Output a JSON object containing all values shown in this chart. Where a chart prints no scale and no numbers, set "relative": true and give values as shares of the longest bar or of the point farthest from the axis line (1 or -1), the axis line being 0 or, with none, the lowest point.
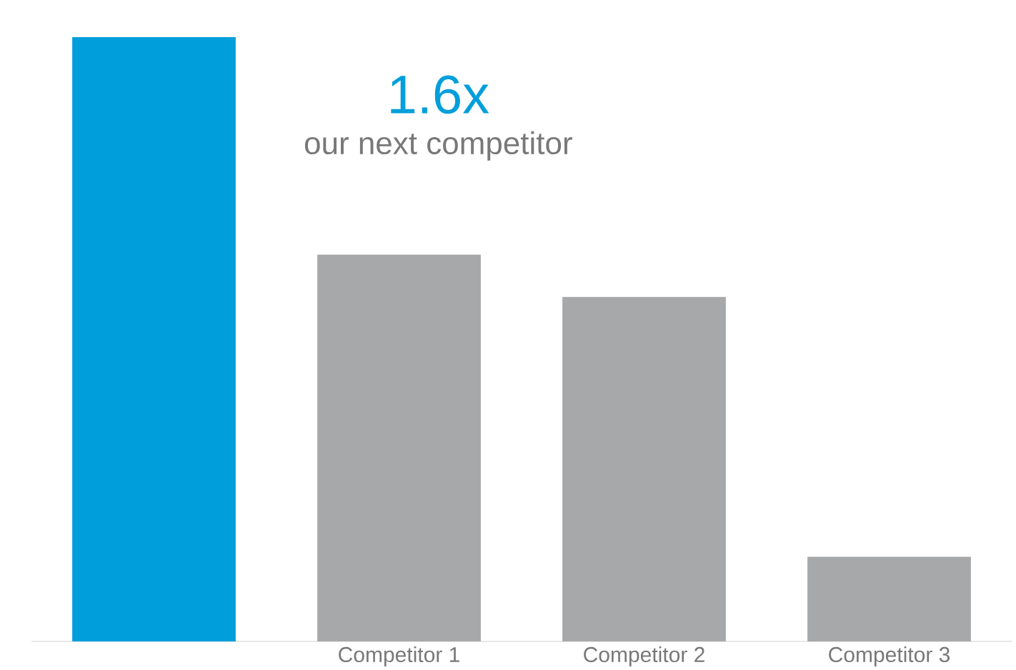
{
  "chart_data": {
    "type": "bar",
    "relative": true,
    "categories": [
      null,
      "Competitor 1",
      "Competitor 2",
      "Competitor 3"
    ],
    "values": [
      1,
      0.64,
      0.57,
      0.14
    ],
    "colors": [
      "#009fdb",
      "#a7a8aa",
      "#a7a8aa",
      "#a7a8aa"
    ],
    "annotations": [
      "1.6x",
      "our next competitor"
    ]
  }
}
